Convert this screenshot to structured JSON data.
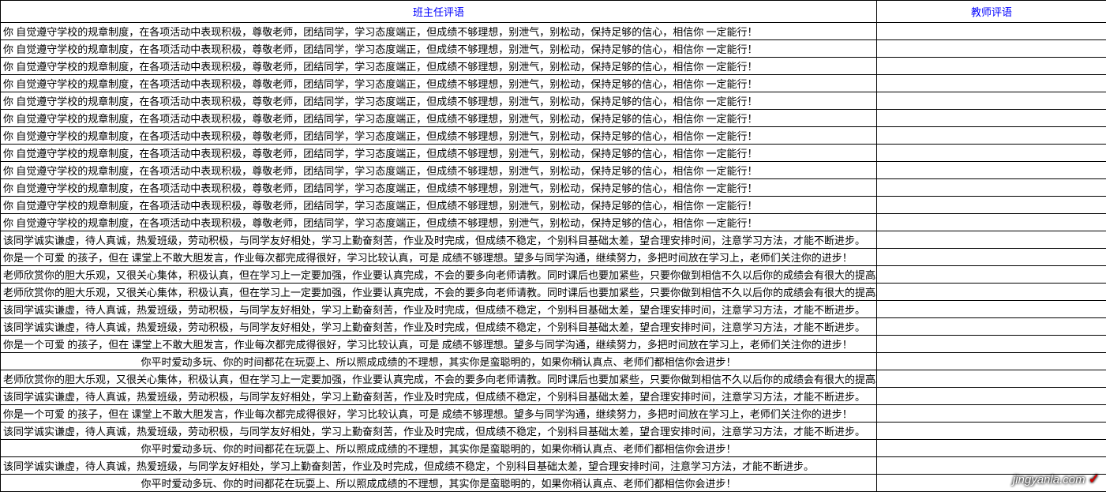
{
  "headers": {
    "left": "班主任评语",
    "right": "教师评语"
  },
  "comments": {
    "c1": "你 自觉遵守学校的规章制度，在各项活动中表现积极，尊敬老师，团结同学，学习态度端正，但成绩不够理想，别泄气，别松动，保持足够的信心，相信你 一定能行！",
    "c2": "该同学诚实谦虚，待人真诚，热爱班级，劳动积极，与同学友好相处，学习上勤奋刻苦，作业及时完成，但成绩不稳定，个别科目基础太差，望合理安排时间，注意学习方法，才能不断进步。",
    "c3": "你是一个可爱 的孩子，但在 课堂上不敢大胆发言，作业每次都完成得很好，学习比较认真，可是 成绩不够理想。望多与同学沟通，继续努力，多把时间放在学习上，老师们关注你的进步！",
    "c4": "老师欣赏你的胆大乐观，又很关心集体，积极认真，但在学习上一定要加强，作业要认真完成，不会的要多向老师请教。同时课后也要加紧些，只要你做到相信不久以后你的成绩会有很大的提高。",
    "c5": "你平时爱动多玩、你的时间都花在玩耍上、所以照成成绩的不理想，其实你是蛮聪明的，如果你稍认真点、老师们都相信你会进步！",
    "c6": "该同学诚实谦虚，待人真诚，热爱班级，与同学友好相处，学习上勤奋刻苦，作业及时完成，但成绩不稳定，个别科目基础太差，望合理安排时间，注意学习方法，才能不断进步。"
  },
  "rows": [
    {
      "align": "left",
      "key": "c1"
    },
    {
      "align": "left",
      "key": "c1"
    },
    {
      "align": "left",
      "key": "c1"
    },
    {
      "align": "left",
      "key": "c1"
    },
    {
      "align": "left",
      "key": "c1"
    },
    {
      "align": "left",
      "key": "c1"
    },
    {
      "align": "left",
      "key": "c1"
    },
    {
      "align": "left",
      "key": "c1"
    },
    {
      "align": "left",
      "key": "c1"
    },
    {
      "align": "left",
      "key": "c1"
    },
    {
      "align": "left",
      "key": "c1"
    },
    {
      "align": "left",
      "key": "c1"
    },
    {
      "align": "left",
      "key": "c2"
    },
    {
      "align": "left",
      "key": "c3"
    },
    {
      "align": "left",
      "key": "c4"
    },
    {
      "align": "left",
      "key": "c4"
    },
    {
      "align": "left",
      "key": "c2"
    },
    {
      "align": "left",
      "key": "c2"
    },
    {
      "align": "left",
      "key": "c3"
    },
    {
      "align": "center",
      "key": "c5"
    },
    {
      "align": "left",
      "key": "c4"
    },
    {
      "align": "left",
      "key": "c2"
    },
    {
      "align": "left",
      "key": "c3"
    },
    {
      "align": "left",
      "key": "c2"
    },
    {
      "align": "center",
      "key": "c5"
    },
    {
      "align": "left",
      "key": "c6"
    },
    {
      "align": "center",
      "key": "c5"
    }
  ],
  "watermark": {
    "text": "jingyanla.com",
    "mark": "✓"
  }
}
